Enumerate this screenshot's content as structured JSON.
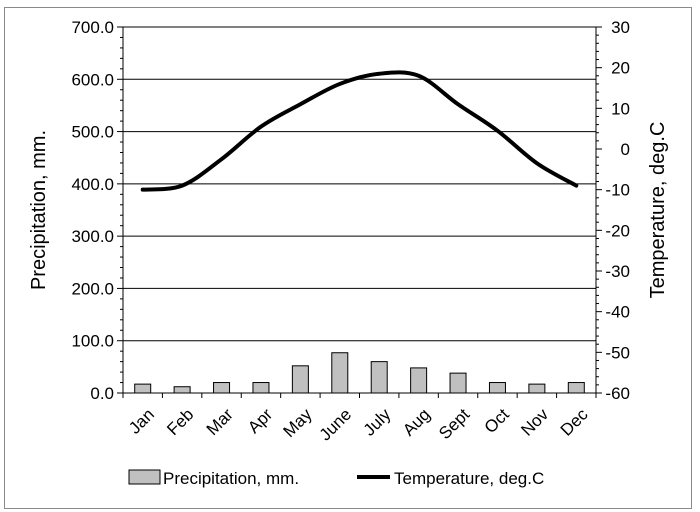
{
  "chart_data": {
    "type": "bar",
    "categories": [
      "Jan",
      "Feb",
      "Mar",
      "Apr",
      "May",
      "June",
      "July",
      "Aug",
      "Sept",
      "Oct",
      "Nov",
      "Dec"
    ],
    "series": [
      {
        "name": "Precipitation, mm.",
        "type": "bar",
        "axis": "left",
        "values": [
          17,
          12,
          20,
          20,
          52,
          77,
          60,
          48,
          38,
          20,
          17,
          20
        ]
      },
      {
        "name": "Temperature, deg.C",
        "type": "line",
        "axis": "right",
        "values": [
          -10,
          -9,
          -2.5,
          5.5,
          11,
          16,
          18.5,
          18,
          11,
          4.5,
          -3.5,
          -9
        ]
      }
    ],
    "ylabel": "Precipitation, mm.",
    "y2label": "Temperature, deg.C",
    "ylim": [
      0,
      700
    ],
    "y2lim": [
      -60,
      30
    ],
    "yticks": [
      "0.0",
      "100.0",
      "200.0",
      "300.0",
      "400.0",
      "500.0",
      "600.0",
      "700.0"
    ],
    "y2ticks": [
      "-60",
      "-50",
      "-40",
      "-30",
      "-20",
      "-10",
      "0",
      "10",
      "20",
      "30"
    ],
    "grid": true,
    "legend": "bottom",
    "colors": {
      "bar_fill": "#c0c0c0",
      "bar_stroke": "#000000",
      "line": "#000000",
      "grid": "#000000"
    }
  }
}
